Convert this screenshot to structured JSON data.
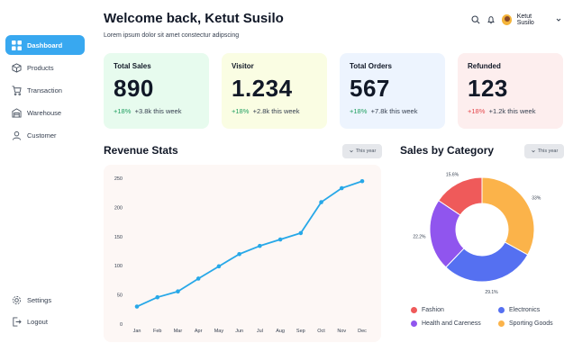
{
  "sidebar": {
    "items": [
      {
        "label": "Dashboard",
        "icon": "grid-icon",
        "active": true
      },
      {
        "label": "Products",
        "icon": "box-icon",
        "active": false
      },
      {
        "label": "Transaction",
        "icon": "cart-icon",
        "active": false
      },
      {
        "label": "Warehouse",
        "icon": "warehouse-icon",
        "active": false
      },
      {
        "label": "Customer",
        "icon": "user-icon",
        "active": false
      }
    ],
    "bottom": [
      {
        "label": "Settings",
        "icon": "gear-icon"
      },
      {
        "label": "Logout",
        "icon": "logout-icon"
      }
    ]
  },
  "header": {
    "title": "Welcome back, Ketut Susilo",
    "subtitle": "Lorem ipsum dolor sit amet constectur adipscing",
    "user_name": "Ketut Susilo"
  },
  "cards": [
    {
      "label": "Total Sales",
      "value": "890",
      "pct": "+18%",
      "delta": "+3.8k this week",
      "trend": "up",
      "bg": "#e7fbee"
    },
    {
      "label": "Visitor",
      "value": "1.234",
      "pct": "+18%",
      "delta": "+2.8k this week",
      "trend": "up",
      "bg": "#fafde3"
    },
    {
      "label": "Total Orders",
      "value": "567",
      "pct": "+18%",
      "delta": "+7.8k this week",
      "trend": "up",
      "bg": "#edf4fe"
    },
    {
      "label": "Refunded",
      "value": "123",
      "pct": "+18%",
      "delta": "+1.2k this week",
      "trend": "down",
      "bg": "#fdeeee"
    }
  ],
  "revenue": {
    "title": "Revenue Stats",
    "period": "This year"
  },
  "category": {
    "title": "Sales by Category",
    "period": "This year"
  },
  "colors": {
    "accent": "#38a8f0",
    "line": "#27a8e8",
    "fashion": "#ef5a5a",
    "electronics": "#5570f1",
    "health": "#9055ee",
    "sporting": "#fbb34a"
  },
  "chart_data": [
    {
      "type": "line",
      "x": [
        "Jan",
        "Feb",
        "Mar",
        "Apr",
        "May",
        "Jun",
        "Jul",
        "Aug",
        "Sep",
        "Oct",
        "Nov",
        "Dec"
      ],
      "values": [
        30,
        46,
        56,
        78,
        99,
        120,
        134,
        145,
        156,
        209,
        233,
        245
      ],
      "yticks": [
        0,
        50,
        100,
        150,
        200,
        250
      ],
      "ylim": [
        0,
        250
      ]
    },
    {
      "type": "pie",
      "donut": true,
      "labels": [
        "Fashion",
        "Electronics",
        "Health and Careness",
        "Sporting Goods"
      ],
      "values": [
        15.6,
        29.1,
        22.2,
        33
      ],
      "display": [
        "15.6%",
        "29.1%",
        "22.2%",
        "33%"
      ]
    }
  ]
}
